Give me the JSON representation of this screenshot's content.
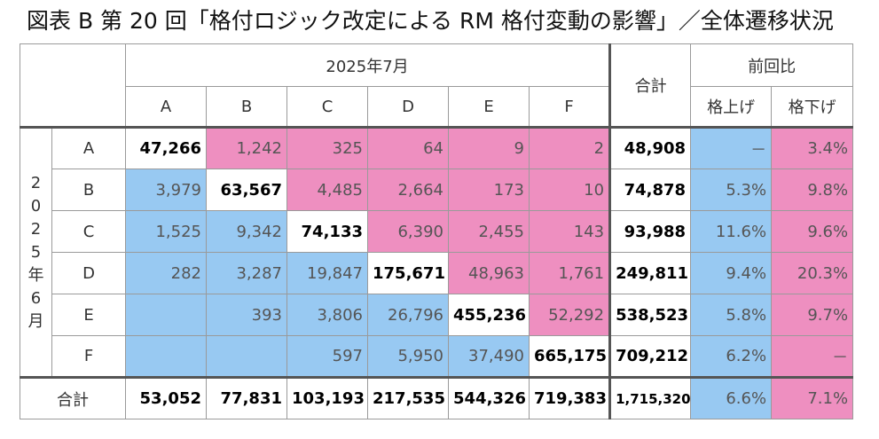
{
  "title": "図表 B  第 20 回「格付ロジック改定による RM 格付変動の影響」／全体遷移状況",
  "header": {
    "period": "2025年7月",
    "columns": [
      "A",
      "B",
      "C",
      "D",
      "E",
      "F"
    ],
    "total": "合計",
    "comparison": "前回比",
    "up": "格上げ",
    "down": "格下げ"
  },
  "row_group_label": [
    "2",
    "0",
    "2",
    "5",
    "年",
    "6",
    "月"
  ],
  "rows": [
    {
      "label": "A",
      "cells": [
        "47,266",
        "1,242",
        "325",
        "64",
        "9",
        "2"
      ],
      "total": "48,908",
      "up": "－",
      "down": "3.4%"
    },
    {
      "label": "B",
      "cells": [
        "3,979",
        "63,567",
        "4,485",
        "2,664",
        "173",
        "10"
      ],
      "total": "74,878",
      "up": "5.3%",
      "down": "9.8%"
    },
    {
      "label": "C",
      "cells": [
        "1,525",
        "9,342",
        "74,133",
        "6,390",
        "2,455",
        "143"
      ],
      "total": "93,988",
      "up": "11.6%",
      "down": "9.6%"
    },
    {
      "label": "D",
      "cells": [
        "282",
        "3,287",
        "19,847",
        "175,671",
        "48,963",
        "1,761"
      ],
      "total": "249,811",
      "up": "9.4%",
      "down": "20.3%"
    },
    {
      "label": "E",
      "cells": [
        "",
        "393",
        "3,806",
        "26,796",
        "455,236",
        "52,292"
      ],
      "total": "538,523",
      "up": "5.8%",
      "down": "9.7%"
    },
    {
      "label": "F",
      "cells": [
        "",
        "",
        "597",
        "5,950",
        "37,490",
        "665,175"
      ],
      "total": "709,212",
      "up": "6.2%",
      "down": "－"
    }
  ],
  "totals_row": {
    "label": "合計",
    "cells": [
      "53,052",
      "77,831",
      "103,193",
      "217,535",
      "544,326",
      "719,383"
    ],
    "total": "1,715,320",
    "up": "6.6%",
    "down": "7.1%"
  },
  "colors": {
    "upgrade_fill": "#ee8fc0",
    "downgrade_fill": "#98c9f2",
    "diagonal_fill": "#ffffff"
  }
}
